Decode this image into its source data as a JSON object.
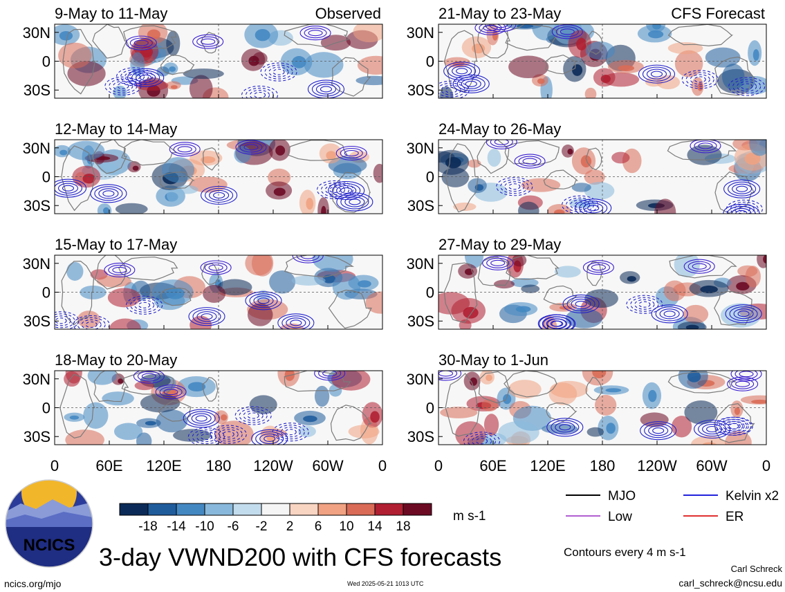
{
  "chart_data": {
    "type": "heatmap",
    "variable": "VWND200",
    "units": "m s-1",
    "title": "3-day VWND200 with CFS forecasts",
    "column_labels": [
      "Observed",
      "CFS Forecast"
    ],
    "panels": [
      {
        "column": 0,
        "row": 0,
        "label": "9-May to 11-May"
      },
      {
        "column": 0,
        "row": 1,
        "label": "12-May to 14-May"
      },
      {
        "column": 0,
        "row": 2,
        "label": "15-May to 17-May"
      },
      {
        "column": 0,
        "row": 3,
        "label": "18-May to 20-May"
      },
      {
        "column": 1,
        "row": 0,
        "label": "21-May to 23-May"
      },
      {
        "column": 1,
        "row": 1,
        "label": "24-May to 26-May"
      },
      {
        "column": 1,
        "row": 2,
        "label": "27-May to 29-May"
      },
      {
        "column": 1,
        "row": 3,
        "label": "30-May to 1-Jun"
      }
    ],
    "x_ticks": [
      "0",
      "60E",
      "120E",
      "180",
      "120W",
      "60W",
      "0"
    ],
    "y_ticks": [
      "30N",
      "0",
      "30S"
    ],
    "colorbar": {
      "labels": [
        "-18",
        "-14",
        "-10",
        "-6",
        "-2",
        "2",
        "6",
        "10",
        "14",
        "18"
      ],
      "colors": [
        "#0b2a57",
        "#1f5c9c",
        "#4488c2",
        "#88b9dc",
        "#c3dced",
        "#f5f5f5",
        "#f8d4c2",
        "#f0a282",
        "#d96b57",
        "#b01f32",
        "#6c0a24"
      ]
    },
    "legend": [
      {
        "label": "MJO",
        "color": "#000000"
      },
      {
        "label": "Kelvin x2",
        "color": "#2222dd"
      },
      {
        "label": "Low",
        "color": "#b060d0"
      },
      {
        "label": "ER",
        "color": "#e03030"
      }
    ],
    "contour_note": "Contours every 4 m s-1"
  },
  "footer": {
    "logo_text": "NCICS",
    "site": "ncics.org/mjo",
    "timestamp": "Wed 2025-05-21 1013 UTC",
    "author": "Carl Schreck",
    "email": "carl_schreck@ncsu.edu"
  }
}
